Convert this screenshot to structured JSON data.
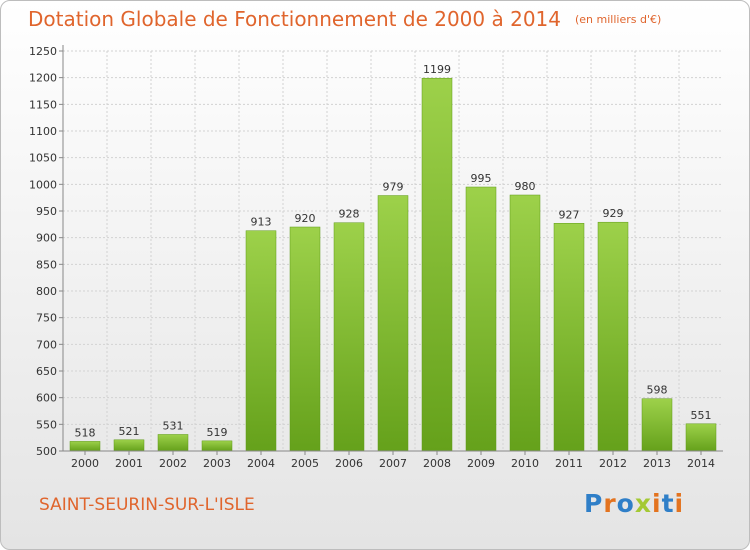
{
  "header": {
    "title": "Dotation Globale de Fonctionnement de 2000 à 2014",
    "unit": "(en milliers d'€)"
  },
  "footer": {
    "commune": "SAINT-SEURIN-SUR-L'ISLE"
  },
  "brand": {
    "letters": [
      "P",
      "r",
      "o",
      "x",
      "i",
      "t",
      "i"
    ],
    "colors": [
      "#2f7fc8",
      "#e3731f",
      "#2f7fc8",
      "#a4c934",
      "#e3731f",
      "#2f7fc8",
      "#e3731f"
    ]
  },
  "chart_data": {
    "type": "bar",
    "title": "Dotation Globale de Fonctionnement de 2000 à 2014",
    "subtitle": "(en milliers d'€)",
    "xlabel": "",
    "ylabel": "",
    "categories": [
      "2000",
      "2001",
      "2002",
      "2003",
      "2004",
      "2005",
      "2006",
      "2007",
      "2008",
      "2009",
      "2010",
      "2011",
      "2012",
      "2013",
      "2014"
    ],
    "values": [
      518,
      521,
      531,
      519,
      913,
      920,
      928,
      979,
      1199,
      995,
      980,
      927,
      929,
      598,
      551
    ],
    "ylim": [
      500,
      1250
    ],
    "yticks": [
      500,
      550,
      600,
      650,
      700,
      750,
      800,
      850,
      900,
      950,
      1000,
      1050,
      1100,
      1150,
      1200,
      1250
    ],
    "grid": true,
    "bar_color": "#8cc63f"
  }
}
